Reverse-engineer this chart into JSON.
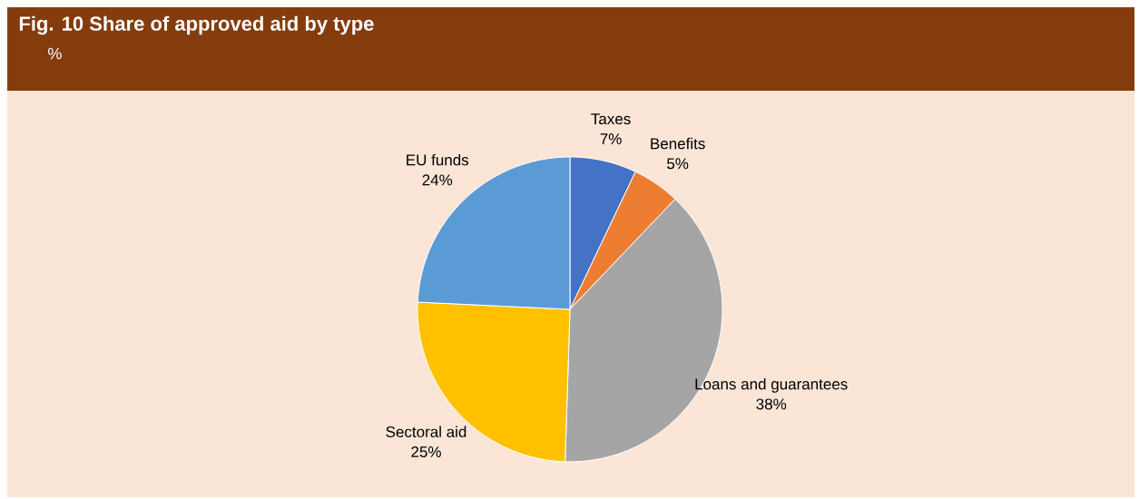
{
  "chart_data": {
    "type": "pie",
    "title": "Fig. 10 Share of approved aid by type",
    "subtitle": "%",
    "categories": [
      "Taxes",
      "Benefits",
      "Loans and guarantees",
      "Sectoral aid",
      "EU funds"
    ],
    "values": [
      7,
      5,
      38,
      25,
      24
    ],
    "value_labels": [
      "7%",
      "5%",
      "38%",
      "25%",
      "24%"
    ],
    "colors": [
      "#4472c4",
      "#ed7d31",
      "#a5a5a5",
      "#ffc000",
      "#5b9bd5"
    ]
  }
}
